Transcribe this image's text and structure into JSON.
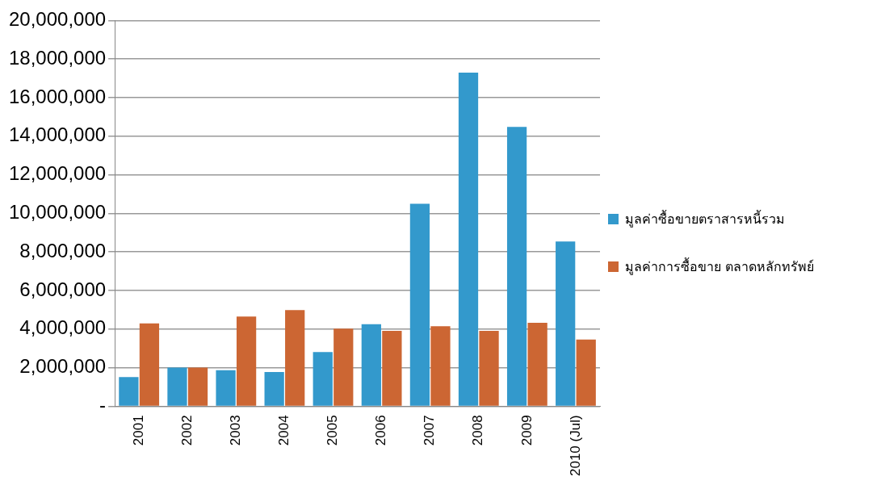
{
  "chart_data": {
    "type": "bar",
    "categories": [
      "2001",
      "2002",
      "2003",
      "2004",
      "2005",
      "2006",
      "2007",
      "2008",
      "2009",
      "2010 (Jul)"
    ],
    "series": [
      {
        "name": "มูลค่าซื้อขายตราสารหนี้รวม",
        "color": "#3399cc",
        "values": [
          1510000,
          2000000,
          1870000,
          1770000,
          2810000,
          4250000,
          10500000,
          17300000,
          14480000,
          8540000
        ]
      },
      {
        "name": "มูลค่าการซื้อขาย ตลาดหลักทรัพย์",
        "color": "#cc6633",
        "values": [
          4290000,
          2000000,
          4650000,
          4990000,
          4020000,
          3910000,
          4150000,
          3910000,
          4330000,
          3460000
        ]
      }
    ],
    "ylim": [
      0,
      20000000
    ],
    "yticks": [
      {
        "value": 0,
        "label": "-"
      },
      {
        "value": 2000000,
        "label": "2,000,000"
      },
      {
        "value": 4000000,
        "label": "4,000,000"
      },
      {
        "value": 6000000,
        "label": "6,000,000"
      },
      {
        "value": 8000000,
        "label": "8,000,000"
      },
      {
        "value": 10000000,
        "label": "10,000,000"
      },
      {
        "value": 12000000,
        "label": "12,000,000"
      },
      {
        "value": 14000000,
        "label": "14,000,000"
      },
      {
        "value": 16000000,
        "label": "16,000,000"
      },
      {
        "value": 18000000,
        "label": "18,000,000"
      },
      {
        "value": 20000000,
        "label": "20,000,000"
      }
    ],
    "grid": "y",
    "legend": "right"
  }
}
